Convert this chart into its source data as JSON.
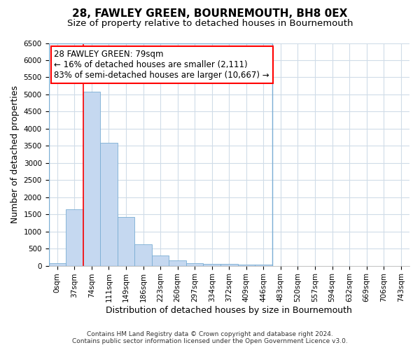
{
  "title": "28, FAWLEY GREEN, BOURNEMOUTH, BH8 0EX",
  "subtitle": "Size of property relative to detached houses in Bournemouth",
  "xlabel": "Distribution of detached houses by size in Bournemouth",
  "ylabel": "Number of detached properties",
  "footer_line1": "Contains HM Land Registry data © Crown copyright and database right 2024.",
  "footer_line2": "Contains public sector information licensed under the Open Government Licence v3.0.",
  "bar_labels": [
    "0sqm",
    "37sqm",
    "74sqm",
    "111sqm",
    "149sqm",
    "186sqm",
    "223sqm",
    "260sqm",
    "297sqm",
    "334sqm",
    "372sqm",
    "409sqm",
    "446sqm",
    "483sqm",
    "520sqm",
    "557sqm",
    "594sqm",
    "632sqm",
    "669sqm",
    "706sqm",
    "743sqm"
  ],
  "bar_values": [
    70,
    1650,
    5080,
    3590,
    1420,
    620,
    305,
    150,
    80,
    50,
    45,
    40,
    35,
    0,
    0,
    0,
    0,
    0,
    0,
    0,
    0
  ],
  "bar_color": "#c5d8f0",
  "bar_edge_color": "#7aadd4",
  "ylim": [
    0,
    6500
  ],
  "yticks": [
    0,
    500,
    1000,
    1500,
    2000,
    2500,
    3000,
    3500,
    4000,
    4500,
    5000,
    5500,
    6000,
    6500
  ],
  "annotation_title": "28 FAWLEY GREEN: 79sqm",
  "annotation_line2": "← 16% of detached houses are smaller (2,111)",
  "annotation_line3": "83% of semi-detached houses are larger (10,667) →",
  "vline_bin_index": 2,
  "active_bar_count": 13,
  "background_color": "#ffffff",
  "plot_bg_color": "#ffffff",
  "grid_color": "#d0dce8",
  "title_fontsize": 11,
  "subtitle_fontsize": 9.5,
  "axis_label_fontsize": 9,
  "tick_fontsize": 7.5,
  "annotation_fontsize": 8.5,
  "footer_fontsize": 6.5
}
